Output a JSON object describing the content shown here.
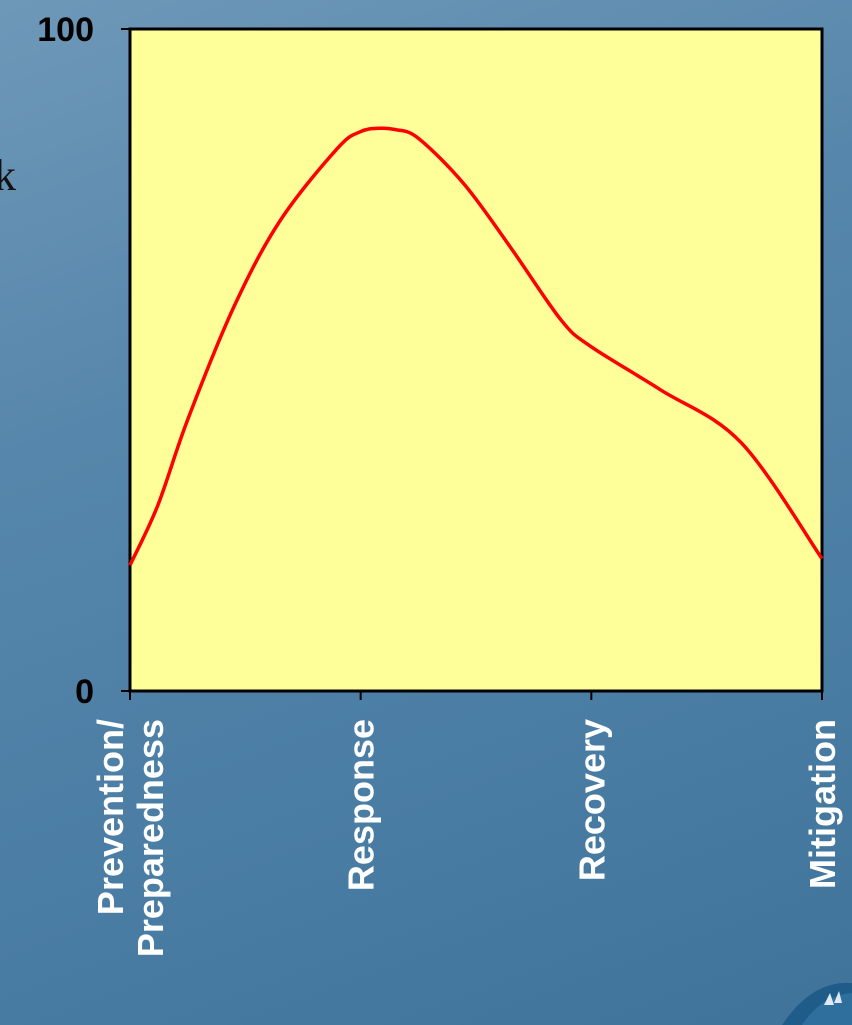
{
  "chart_data": {
    "type": "line",
    "categories": [
      "Prevention/\nPreparedness",
      "Response",
      "Recovery",
      "Mitigation"
    ],
    "category_positions": [
      0,
      1,
      2,
      3
    ],
    "ylim": [
      0,
      100
    ],
    "y_ticks": [
      "0",
      "100"
    ],
    "series": [
      {
        "color": "#ff0000",
        "x": [
          0,
          0.12,
          0.25,
          0.45,
          0.65,
          0.9,
          1.0,
          1.08,
          1.15,
          1.25,
          1.45,
          1.65,
          1.87,
          2.0,
          2.3,
          2.65,
          3.0
        ],
        "y": [
          19,
          28,
          41,
          58,
          71,
          82,
          84.5,
          85,
          84.8,
          83.5,
          76.5,
          67,
          56,
          52,
          45.5,
          37.5,
          20
        ]
      }
    ],
    "plot_bg": "#ffff99",
    "grid": false
  },
  "left_edge_char": "k"
}
